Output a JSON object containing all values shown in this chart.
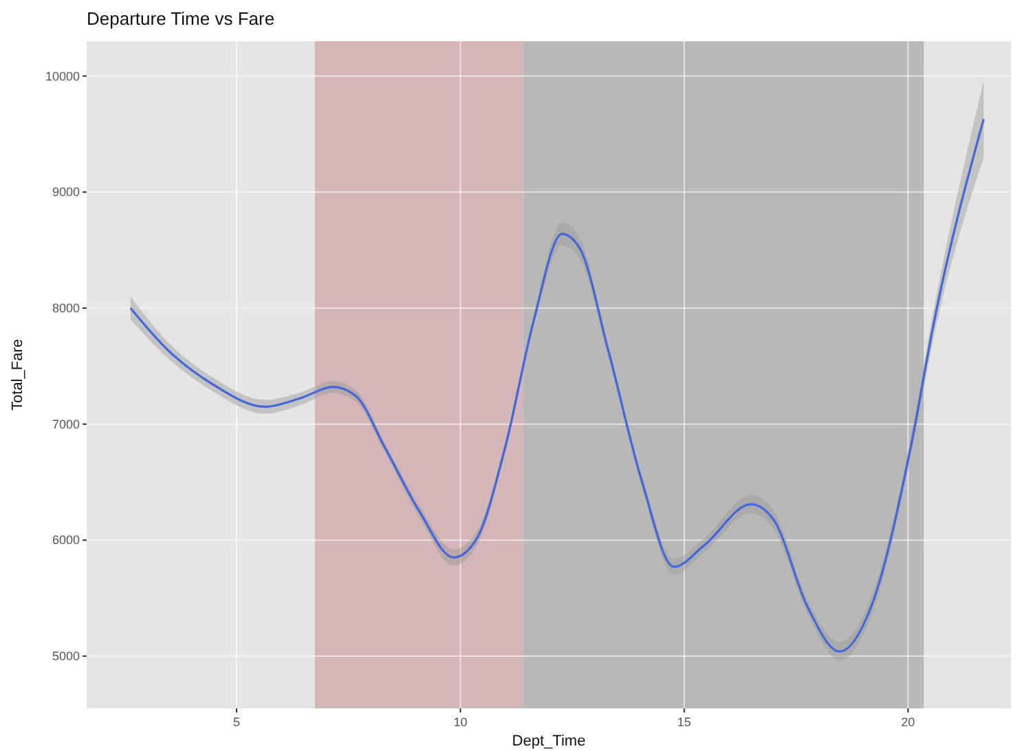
{
  "chart_data": {
    "type": "line",
    "title": "Departure Time vs Fare",
    "xlabel": "Dept_Time",
    "ylabel": "Total_Fare",
    "xlim": [
      1.65,
      22.3
    ],
    "ylim": [
      4550,
      10300
    ],
    "xticks": [
      5,
      10,
      15,
      20
    ],
    "yticks": [
      5000,
      6000,
      7000,
      8000,
      9000,
      10000
    ],
    "grid": true,
    "marker": "none",
    "line_style": "solid",
    "bands": [
      {
        "axis": "x",
        "from": 6.75,
        "to": 11.4,
        "color": "#d4b5b8"
      },
      {
        "axis": "x",
        "from": 11.4,
        "to": 20.35,
        "color": "#b8b8b8"
      }
    ],
    "series": [
      {
        "color": "#4466dd",
        "x": [
          2.63,
          3.46,
          4.48,
          5.63,
          6.4,
          7.16,
          7.67,
          8.31,
          9.08,
          9.85,
          10.36,
          11.0,
          11.63,
          12.27,
          12.66,
          13.3,
          14.06,
          14.77,
          15.46,
          16.49,
          16.99,
          17.76,
          18.47,
          19.17,
          20.06,
          20.58,
          21.69
        ],
        "values": [
          8000,
          7640,
          7340,
          7150,
          7220,
          7320,
          7240,
          6800,
          6250,
          5850,
          6010,
          6800,
          7880,
          8640,
          8520,
          7640,
          6500,
          5770,
          5960,
          6310,
          6180,
          5420,
          5040,
          5420,
          6800,
          7880,
          9630
        ],
        "lower": [
          7900,
          7570,
          7280,
          7090,
          7160,
          7270,
          7190,
          6760,
          6200,
          5780,
          5950,
          6750,
          7830,
          8540,
          8430,
          7590,
          6450,
          5700,
          5900,
          6230,
          6100,
          5360,
          4960,
          5340,
          6720,
          7760,
          9300
        ],
        "upper": [
          8100,
          7710,
          7400,
          7210,
          7270,
          7370,
          7290,
          6840,
          6300,
          5920,
          6070,
          6850,
          7930,
          8740,
          8610,
          7690,
          6550,
          5840,
          6020,
          6390,
          6260,
          5480,
          5120,
          5500,
          6880,
          8000,
          9960
        ]
      }
    ]
  }
}
